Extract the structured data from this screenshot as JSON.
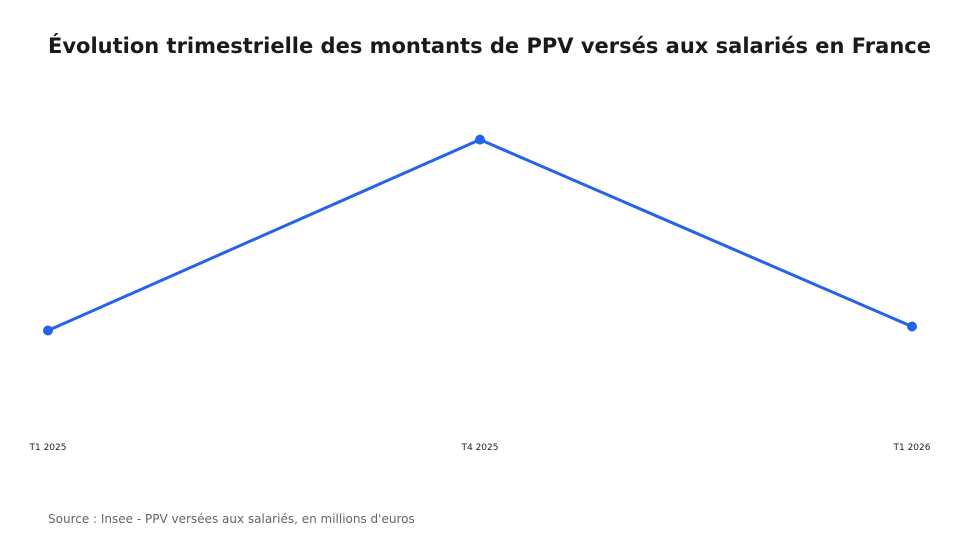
{
  "chart_data": {
    "type": "line",
    "title": "Évolution trimestrielle des montants de PPV versés aux salariés en France",
    "categories": [
      "T1 2025",
      "T4 2025",
      "T1 2026"
    ],
    "series": [
      {
        "values": [
          1050,
          1530,
          1060
        ]
      }
    ],
    "ylim": [
      850,
      1680
    ],
    "grid": false,
    "legend": "none",
    "xlabel": "",
    "ylabel": "",
    "colors": {
      "line": "#2563eb",
      "point": "#2563eb"
    }
  },
  "footer": {
    "source": "Source : Insee - PPV versées aux salariés, en millions d'euros"
  }
}
